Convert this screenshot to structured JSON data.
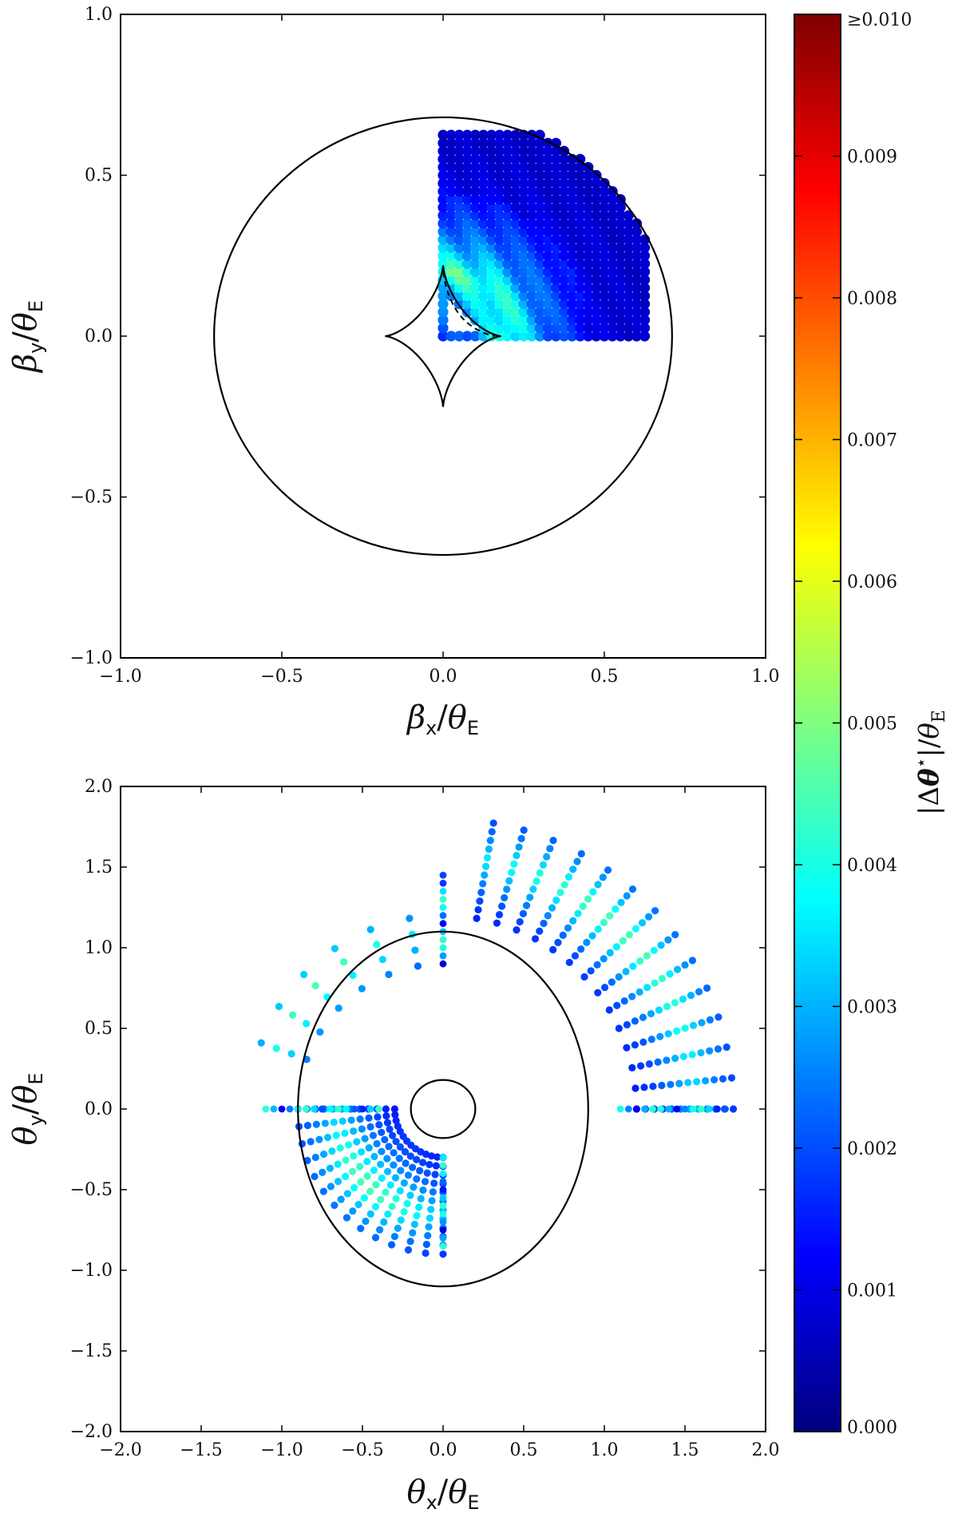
{
  "chart_data": [
    {
      "type": "scatter",
      "panel": "source-plane",
      "xlabel": "βx/θE",
      "ylabel": "βy/θE",
      "xlabel_main": "β",
      "xlabel_sub1": "x",
      "xlabel_sub2": "E",
      "ylabel_main": "β",
      "ylabel_sub1": "y",
      "ylabel_sub2": "E",
      "xlim": [
        -1.0,
        1.0
      ],
      "ylim": [
        -1.0,
        1.0
      ],
      "xticks": [
        -1.0,
        -0.5,
        0.0,
        0.5,
        1.0
      ],
      "yticks": [
        -1.0,
        -0.5,
        0.0,
        0.5,
        1.0
      ],
      "xtick_labels": [
        "−1.0",
        "−0.5",
        "0.0",
        "0.5",
        "1.0"
      ],
      "ytick_labels": [
        "−1.0",
        "−0.5",
        "0.0",
        "0.5",
        "1.0"
      ],
      "curves": [
        {
          "name": "outer caustic",
          "kind": "ellipse",
          "cx": 0.0,
          "cy": 0.0,
          "rx": 0.71,
          "ry": 0.68
        },
        {
          "name": "central caustic",
          "kind": "astroid",
          "cx": 0.0,
          "cy": 0.0,
          "rx": 0.18,
          "ry": 0.22
        },
        {
          "name": "dashed fold",
          "kind": "dashed-arc",
          "from": [
            0.0,
            0.2
          ],
          "to": [
            0.16,
            0.0
          ]
        }
      ],
      "grid": {
        "kind": "quarter-disc grid",
        "x_start": 0.0,
        "x_step": 0.025,
        "nx": 26,
        "y_start": 0.0,
        "y_step": 0.025,
        "ny": 26,
        "max_radius": 0.7,
        "value_range": [
          0.0,
          0.006
        ]
      }
    },
    {
      "type": "scatter",
      "panel": "image-plane",
      "xlabel": "θx/θE",
      "ylabel": "θy/θE",
      "xlabel_main": "θ",
      "xlabel_sub1": "x",
      "xlabel_sub2": "E",
      "ylabel_main": "θ",
      "ylabel_sub1": "y",
      "ylabel_sub2": "E",
      "xlim": [
        -2.0,
        2.0
      ],
      "ylim": [
        -2.0,
        2.0
      ],
      "xticks": [
        -2.0,
        -1.5,
        -1.0,
        -0.5,
        0.0,
        0.5,
        1.0,
        1.5,
        2.0
      ],
      "yticks": [
        -2.0,
        -1.5,
        -1.0,
        -0.5,
        0.0,
        0.5,
        1.0,
        1.5,
        2.0
      ],
      "xtick_labels": [
        "−2.0",
        "−1.5",
        "−1.0",
        "−0.5",
        "0.0",
        "0.5",
        "1.0",
        "1.5",
        "2.0"
      ],
      "ytick_labels": [
        "−2.0",
        "−1.5",
        "−1.0",
        "−0.5",
        "0.0",
        "0.5",
        "1.0",
        "1.5",
        "2.0"
      ],
      "curves": [
        {
          "name": "tangential critical curve",
          "kind": "ellipse",
          "cx": 0.0,
          "cy": 0.0,
          "rx": 0.9,
          "ry": 1.1
        },
        {
          "name": "radial critical curve",
          "kind": "ellipse",
          "cx": 0.0,
          "cy": 0.0,
          "rx": 0.2,
          "ry": 0.18
        }
      ],
      "image_families": [
        {
          "name": "outer arc images",
          "r_min": 1.2,
          "r_max": 1.8,
          "ang_min_deg": 0,
          "ang_max_deg": 80,
          "value_range": [
            0.0,
            0.006
          ]
        },
        {
          "name": "inner fan images",
          "r_min": 0.3,
          "r_max": 0.9,
          "ang_min_deg": 180,
          "ang_max_deg": 270,
          "value_range": [
            0.0,
            0.006
          ]
        },
        {
          "name": "upper-left sparse images",
          "r_min": 0.9,
          "r_max": 1.2,
          "ang_min_deg": 100,
          "ang_max_deg": 160,
          "value_range": [
            0.0,
            0.006
          ]
        }
      ]
    }
  ],
  "colorbar": {
    "label": "|Δθ*|/θE",
    "label_parts": [
      "|Δ",
      "θ",
      "⋆",
      "|/",
      "θ",
      "E"
    ],
    "min": 0.0,
    "max": 0.01,
    "ticks": [
      0.0,
      0.001,
      0.002,
      0.003,
      0.004,
      0.005,
      0.006,
      0.007,
      0.008,
      0.009,
      0.01
    ],
    "tick_labels": [
      "0.000",
      "0.001",
      "0.002",
      "0.003",
      "0.004",
      "0.005",
      "0.006",
      "0.007",
      "0.008",
      "0.009",
      "≥0.010"
    ],
    "colormap": "jet"
  }
}
